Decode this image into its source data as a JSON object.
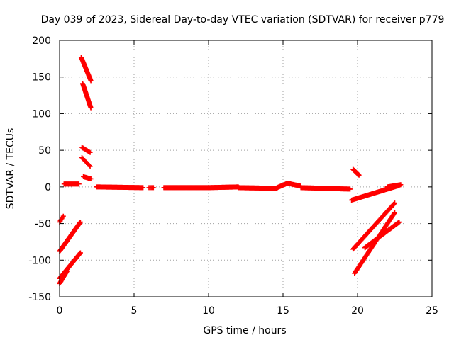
{
  "chart_data": {
    "type": "scatter",
    "title": "Day 039 of 2023, Sidereal Day-to-day VTEC variation (SDTVAR) for receiver p779",
    "xlabel": "GPS time / hours",
    "ylabel": "SDTVAR / TECUs",
    "xlim": [
      0,
      25
    ],
    "ylim": [
      -150,
      200
    ],
    "xticks": [
      0,
      5,
      10,
      15,
      20,
      25
    ],
    "yticks": [
      -150,
      -100,
      -50,
      0,
      50,
      100,
      150,
      200
    ],
    "grid": true,
    "marker": "plus",
    "color": "#ff0000",
    "series": [
      {
        "name": "SDTVAR",
        "segments": [
          {
            "x": [
              0.0,
              0.25
            ],
            "y": [
              -48,
              -40
            ],
            "n": 6
          },
          {
            "x": [
              0.0,
              1.4
            ],
            "y": [
              -88,
              -48
            ],
            "n": 60
          },
          {
            "x": [
              0.0,
              1.4
            ],
            "y": [
              -125,
              -90
            ],
            "n": 60
          },
          {
            "x": [
              0.0,
              0.5
            ],
            "y": [
              -132,
              -115
            ],
            "n": 20
          },
          {
            "x": [
              0.3,
              1.3
            ],
            "y": [
              4,
              4
            ],
            "n": 30
          },
          {
            "x": [
              1.45,
              2.1
            ],
            "y": [
              177,
              145
            ],
            "n": 30
          },
          {
            "x": [
              1.55,
              2.1
            ],
            "y": [
              141,
              108
            ],
            "n": 30
          },
          {
            "x": [
              1.5,
              2.05
            ],
            "y": [
              54,
              47
            ],
            "n": 10
          },
          {
            "x": [
              1.5,
              2.05
            ],
            "y": [
              40,
              28
            ],
            "n": 10
          },
          {
            "x": [
              1.6,
              2.1
            ],
            "y": [
              14,
              11
            ],
            "n": 10
          },
          {
            "x": [
              2.5,
              5.6
            ],
            "y": [
              0,
              -1
            ],
            "n": 70
          },
          {
            "x": [
              6.0,
              6.3
            ],
            "y": [
              -1,
              -1
            ],
            "n": 5
          },
          {
            "x": [
              7.0,
              10.0
            ],
            "y": [
              -1,
              -1
            ],
            "n": 70
          },
          {
            "x": [
              10.0,
              12.0
            ],
            "y": [
              -1,
              0
            ],
            "n": 50
          },
          {
            "x": [
              12.0,
              14.6
            ],
            "y": [
              -1,
              -2
            ],
            "n": 60
          },
          {
            "x": [
              14.6,
              15.3
            ],
            "y": [
              -1,
              5
            ],
            "n": 20
          },
          {
            "x": [
              15.3,
              16.2
            ],
            "y": [
              5,
              1
            ],
            "n": 20
          },
          {
            "x": [
              16.2,
              19.5
            ],
            "y": [
              -1,
              -3
            ],
            "n": 70
          },
          {
            "x": [
              19.7,
              20.1
            ],
            "y": [
              24,
              16
            ],
            "n": 12
          },
          {
            "x": [
              19.6,
              22.8
            ],
            "y": [
              -18,
              2
            ],
            "n": 70
          },
          {
            "x": [
              22.0,
              22.9
            ],
            "y": [
              0,
              3
            ],
            "n": 20
          },
          {
            "x": [
              19.7,
              22.5
            ],
            "y": [
              -85,
              -22
            ],
            "n": 70
          },
          {
            "x": [
              19.8,
              22.5
            ],
            "y": [
              -118,
              -35
            ],
            "n": 70
          },
          {
            "x": [
              20.5,
              22.8
            ],
            "y": [
              -83,
              -48
            ],
            "n": 60
          }
        ]
      }
    ]
  }
}
